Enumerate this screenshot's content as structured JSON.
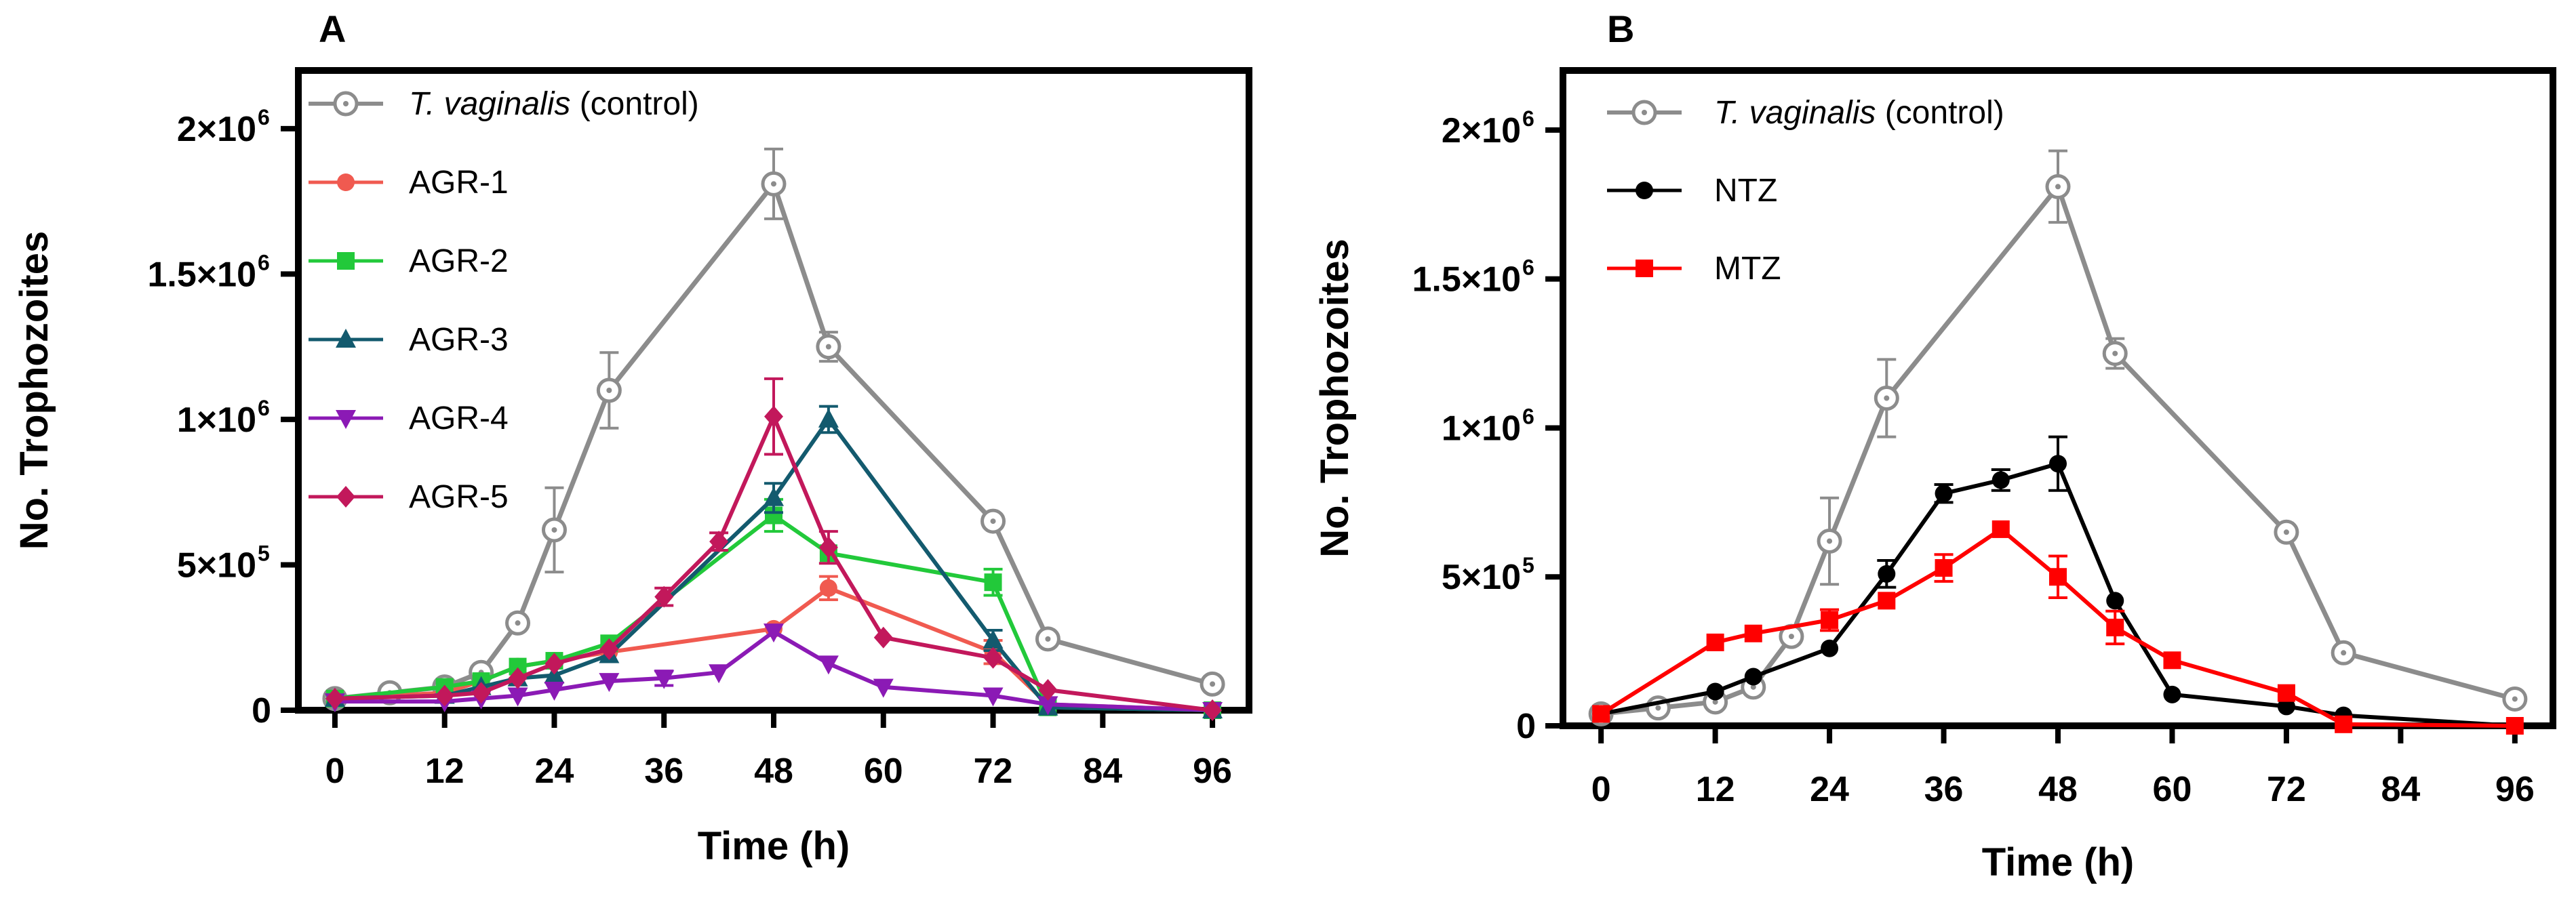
{
  "chart_data": [
    {
      "panel": "A",
      "type": "line",
      "xlabel": "Time (h)",
      "ylabel": "No. Trophozoites",
      "xlim": [
        -4,
        100
      ],
      "ylim": [
        0,
        2200000
      ],
      "xticks": [
        0,
        12,
        24,
        36,
        48,
        60,
        72,
        84,
        96
      ],
      "yticks": [
        {
          "value": 0,
          "mantissa": "0",
          "exponent": ""
        },
        {
          "value": 500000,
          "mantissa": "5×10",
          "exponent": "5"
        },
        {
          "value": 1000000,
          "mantissa": "1×10",
          "exponent": "6"
        },
        {
          "value": 1500000,
          "mantissa": "1.5×10",
          "exponent": "6"
        },
        {
          "value": 2000000,
          "mantissa": "2×10",
          "exponent": "6"
        }
      ],
      "legend": {
        "position": "top-left"
      },
      "series": [
        {
          "name": "T. vaginalis",
          "name_suffix": " (control)",
          "italic": true,
          "color": "#8c8c8c",
          "marker": "ring",
          "x": [
            0,
            6,
            12,
            16,
            20,
            24,
            30,
            48,
            54,
            72,
            78,
            96
          ],
          "y": [
            40000,
            60000,
            80000,
            130000,
            300000,
            620000,
            1100000,
            1810000,
            1250000,
            650000,
            245000,
            90000
          ],
          "err": [
            0,
            0,
            0,
            0,
            0,
            145000,
            130000,
            120000,
            50000,
            0,
            0,
            0
          ]
        },
        {
          "name": "AGR-1",
          "color": "#f05a50",
          "marker": "circle",
          "x": [
            0,
            12,
            16,
            20,
            24,
            30,
            48,
            54,
            72,
            78,
            96
          ],
          "y": [
            40000,
            60000,
            100000,
            150000,
            170000,
            200000,
            280000,
            420000,
            200000,
            20000,
            0
          ],
          "err": [
            0,
            0,
            0,
            0,
            0,
            0,
            0,
            40000,
            40000,
            0,
            0
          ]
        },
        {
          "name": "AGR-2",
          "color": "#22c93a",
          "marker": "square",
          "x": [
            0,
            12,
            16,
            20,
            24,
            30,
            48,
            54,
            72,
            78,
            96
          ],
          "y": [
            40000,
            80000,
            100000,
            150000,
            170000,
            230000,
            670000,
            540000,
            440000,
            10000,
            0
          ],
          "err": [
            0,
            0,
            0,
            0,
            0,
            0,
            55000,
            0,
            45000,
            0,
            0
          ]
        },
        {
          "name": "AGR-3",
          "color": "#135a6e",
          "marker": "triangle-up",
          "x": [
            0,
            12,
            16,
            20,
            24,
            30,
            48,
            54,
            72,
            78,
            96
          ],
          "y": [
            40000,
            50000,
            80000,
            110000,
            120000,
            190000,
            730000,
            1000000,
            240000,
            10000,
            0
          ],
          "err": [
            0,
            0,
            0,
            0,
            0,
            0,
            50000,
            45000,
            35000,
            0,
            0
          ]
        },
        {
          "name": "AGR-4",
          "color": "#8b1ab5",
          "marker": "triangle-down",
          "x": [
            0,
            12,
            16,
            20,
            24,
            30,
            36,
            42,
            48,
            54,
            60,
            72,
            78,
            96
          ],
          "y": [
            30000,
            30000,
            40000,
            50000,
            70000,
            100000,
            110000,
            130000,
            270000,
            160000,
            80000,
            50000,
            20000,
            0
          ],
          "err": [
            0,
            0,
            0,
            0,
            0,
            0,
            25000,
            0,
            0,
            0,
            0,
            0,
            0,
            0
          ]
        },
        {
          "name": "AGR-5",
          "color": "#c2185b",
          "marker": "diamond",
          "x": [
            0,
            12,
            16,
            20,
            24,
            30,
            36,
            42,
            48,
            54,
            60,
            72,
            78,
            96
          ],
          "y": [
            40000,
            50000,
            60000,
            110000,
            160000,
            210000,
            390000,
            580000,
            1010000,
            560000,
            250000,
            180000,
            70000,
            0
          ],
          "err": [
            0,
            0,
            0,
            0,
            0,
            0,
            30000,
            30000,
            130000,
            55000,
            0,
            0,
            0,
            0
          ]
        }
      ]
    },
    {
      "panel": "B",
      "type": "line",
      "xlabel": "Time (h)",
      "ylabel": "No. Trophozoites",
      "xlim": [
        -4,
        100
      ],
      "ylim": [
        0,
        2200000
      ],
      "xticks": [
        0,
        12,
        24,
        36,
        48,
        60,
        72,
        84,
        96
      ],
      "yticks": [
        {
          "value": 0,
          "mantissa": "0",
          "exponent": ""
        },
        {
          "value": 500000,
          "mantissa": "5×10",
          "exponent": "5"
        },
        {
          "value": 1000000,
          "mantissa": "1×10",
          "exponent": "6"
        },
        {
          "value": 1500000,
          "mantissa": "1.5×10",
          "exponent": "6"
        },
        {
          "value": 2000000,
          "mantissa": "2×10",
          "exponent": "6"
        }
      ],
      "legend": {
        "position": "top-left"
      },
      "series": [
        {
          "name": "T. vaginalis",
          "name_suffix": " (control)",
          "italic": true,
          "color": "#8c8c8c",
          "marker": "ring",
          "x": [
            0,
            6,
            12,
            16,
            20,
            24,
            30,
            48,
            54,
            72,
            78,
            96
          ],
          "y": [
            40000,
            60000,
            80000,
            130000,
            300000,
            620000,
            1100000,
            1810000,
            1250000,
            650000,
            245000,
            90000
          ],
          "err": [
            0,
            0,
            0,
            0,
            0,
            145000,
            130000,
            120000,
            50000,
            0,
            0,
            0
          ]
        },
        {
          "name": "NTZ",
          "color": "#000000",
          "marker": "circle",
          "x": [
            0,
            12,
            16,
            24,
            30,
            36,
            42,
            48,
            54,
            60,
            72,
            78,
            96
          ],
          "y": [
            40000,
            115000,
            165000,
            260000,
            510000,
            780000,
            825000,
            880000,
            420000,
            105000,
            65000,
            35000,
            0
          ],
          "err": [
            0,
            0,
            0,
            0,
            45000,
            30000,
            35000,
            90000,
            0,
            0,
            0,
            0,
            0
          ]
        },
        {
          "name": "MTZ",
          "color": "#ff0000",
          "marker": "square",
          "x": [
            0,
            12,
            16,
            24,
            30,
            36,
            42,
            48,
            54,
            60,
            72,
            78,
            96
          ],
          "y": [
            40000,
            280000,
            310000,
            355000,
            420000,
            530000,
            660000,
            500000,
            330000,
            220000,
            110000,
            5000,
            0
          ],
          "err": [
            0,
            0,
            0,
            35000,
            0,
            45000,
            0,
            70000,
            55000,
            0,
            0,
            0,
            0
          ]
        }
      ]
    }
  ]
}
